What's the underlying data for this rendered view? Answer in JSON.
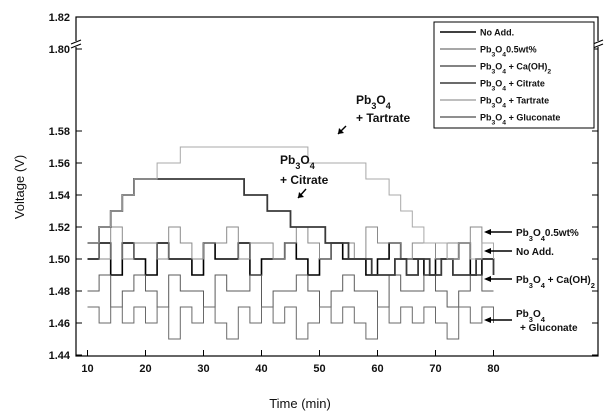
{
  "chart_data": {
    "type": "line",
    "title": "",
    "xlabel": "Time (min)",
    "ylabel": "Voltage (V)",
    "xlim": [
      10,
      100
    ],
    "ylim": [
      1.44,
      1.82
    ],
    "axis_break": {
      "from": 1.58,
      "to": 1.8
    },
    "x_ticks": [
      "10",
      "20",
      "30",
      "40",
      "50",
      "60",
      "70",
      "80"
    ],
    "x_tick_values": [
      10,
      20,
      30,
      40,
      50,
      60,
      70,
      80
    ],
    "y_ticks": [
      "1.44",
      "1.46",
      "1.48",
      "1.50",
      "1.52",
      "1.54",
      "1.56",
      "1.58",
      "1.80",
      "1.82"
    ],
    "y_tick_values": [
      1.44,
      1.46,
      1.48,
      1.5,
      1.52,
      1.54,
      1.56,
      1.58,
      1.8,
      1.82
    ],
    "legend_position": "top-right",
    "legend": [
      {
        "base": "No Add.",
        "sub": "",
        "rest": "",
        "color": "#000000"
      },
      {
        "base": "Pb",
        "sub": "3",
        "mid": "O",
        "sub2": "4",
        "rest": "0.5wt%",
        "color": "#8a8a8a"
      },
      {
        "base": "Pb",
        "sub": "3",
        "mid": "O",
        "sub2": "4",
        "rest": " + Ca(OH)",
        "sub3": "2",
        "color": "#5a5a5a"
      },
      {
        "base": "Pb",
        "sub": "3",
        "mid": "O",
        "sub2": "4",
        "rest": " + Citrate",
        "color": "#3a3a3a"
      },
      {
        "base": "Pb",
        "sub": "3",
        "mid": "O",
        "sub2": "4",
        "rest": " + Tartrate",
        "color": "#a8a8a8"
      },
      {
        "base": "Pb",
        "sub": "3",
        "mid": "O",
        "sub2": "4",
        "rest": " + Gluconate",
        "color": "#6a6a6a"
      }
    ],
    "series": [
      {
        "name": "No Add.",
        "color": "#000000",
        "width": 1.6,
        "x": [
          10,
          12,
          14,
          16,
          18,
          20,
          22,
          24,
          26,
          28,
          30,
          32,
          34,
          36,
          38,
          40,
          42,
          44,
          46,
          48,
          50,
          52,
          54,
          56,
          58,
          60,
          62,
          64,
          66,
          68,
          70,
          72,
          74,
          76,
          78,
          80
        ],
        "y": [
          1.5,
          1.51,
          1.49,
          1.51,
          1.5,
          1.49,
          1.51,
          1.5,
          1.5,
          1.49,
          1.51,
          1.5,
          1.5,
          1.51,
          1.49,
          1.5,
          1.5,
          1.51,
          1.5,
          1.49,
          1.5,
          1.51,
          1.5,
          1.5,
          1.49,
          1.5,
          1.51,
          1.5,
          1.5,
          1.49,
          1.5,
          1.5,
          1.51,
          1.49,
          1.5,
          1.5
        ]
      },
      {
        "name": "Pb3O4 0.5wt%",
        "color": "#8a8a8a",
        "width": 1.0,
        "x": [
          10,
          12,
          14,
          16,
          18,
          20,
          22,
          24,
          26,
          28,
          30,
          32,
          34,
          36,
          38,
          40,
          42,
          44,
          46,
          48,
          50,
          52,
          54,
          56,
          58,
          60,
          62,
          64,
          66,
          68,
          70,
          72,
          74,
          76,
          78,
          80
        ],
        "y": [
          1.51,
          1.5,
          1.52,
          1.5,
          1.51,
          1.51,
          1.5,
          1.52,
          1.51,
          1.5,
          1.51,
          1.51,
          1.52,
          1.5,
          1.51,
          1.51,
          1.5,
          1.51,
          1.52,
          1.51,
          1.5,
          1.51,
          1.51,
          1.5,
          1.52,
          1.51,
          1.51,
          1.5,
          1.51,
          1.51,
          1.5,
          1.51,
          1.51,
          1.52,
          1.5,
          1.51
        ]
      },
      {
        "name": "Pb3O4 + Ca(OH)2",
        "color": "#5a5a5a",
        "width": 1.0,
        "x": [
          10,
          12,
          14,
          16,
          18,
          20,
          22,
          24,
          26,
          28,
          30,
          32,
          34,
          36,
          38,
          40,
          42,
          44,
          46,
          48,
          50,
          52,
          54,
          56,
          58,
          60,
          62,
          64,
          66,
          68,
          70,
          72,
          74,
          76,
          78,
          80
        ],
        "y": [
          1.48,
          1.49,
          1.47,
          1.48,
          1.49,
          1.48,
          1.47,
          1.49,
          1.48,
          1.48,
          1.47,
          1.49,
          1.48,
          1.48,
          1.49,
          1.47,
          1.48,
          1.48,
          1.49,
          1.48,
          1.47,
          1.48,
          1.49,
          1.48,
          1.48,
          1.47,
          1.49,
          1.48,
          1.48,
          1.49,
          1.48,
          1.47,
          1.48,
          1.49,
          1.48,
          1.48
        ]
      },
      {
        "name": "Pb3O4 + Citrate",
        "color": "#3a3a3a",
        "width": 1.8,
        "x": [
          10,
          12,
          14,
          16,
          18,
          19,
          21,
          23,
          25,
          27,
          29,
          31,
          33,
          35,
          37,
          39,
          41,
          43,
          45,
          47,
          49,
          51,
          53,
          55,
          57,
          59,
          61,
          63,
          65,
          67,
          69,
          71,
          73,
          75,
          77,
          80
        ],
        "y": [
          1.51,
          1.52,
          1.53,
          1.54,
          1.55,
          1.55,
          1.55,
          1.55,
          1.55,
          1.55,
          1.55,
          1.55,
          1.55,
          1.55,
          1.54,
          1.54,
          1.53,
          1.53,
          1.52,
          1.52,
          1.52,
          1.51,
          1.51,
          1.5,
          1.5,
          1.49,
          1.49,
          1.5,
          1.49,
          1.5,
          1.49,
          1.5,
          1.49,
          1.49,
          1.5,
          1.49
        ]
      },
      {
        "name": "Pb3O4 + Tartrate",
        "color": "#a8a8a8",
        "width": 1.0,
        "x": [
          10,
          12,
          14,
          16,
          18,
          20,
          22,
          24,
          26,
          28,
          30,
          32,
          34,
          36,
          38,
          40,
          42,
          44,
          46,
          48,
          50,
          52,
          54,
          56,
          58,
          60,
          62,
          64,
          66,
          68,
          70,
          72,
          74,
          76,
          78,
          80
        ],
        "y": [
          1.51,
          1.52,
          1.53,
          1.54,
          1.55,
          1.55,
          1.56,
          1.56,
          1.57,
          1.57,
          1.57,
          1.57,
          1.57,
          1.57,
          1.57,
          1.57,
          1.57,
          1.57,
          1.57,
          1.56,
          1.56,
          1.56,
          1.56,
          1.56,
          1.55,
          1.55,
          1.54,
          1.53,
          1.52,
          1.51,
          1.51,
          1.5,
          1.51,
          1.5,
          1.51,
          1.5
        ]
      },
      {
        "name": "Pb3O4 + Gluconate",
        "color": "#6a6a6a",
        "width": 1.0,
        "x": [
          10,
          12,
          14,
          16,
          18,
          20,
          22,
          24,
          26,
          28,
          30,
          32,
          34,
          36,
          38,
          40,
          42,
          44,
          46,
          48,
          50,
          52,
          54,
          56,
          58,
          60,
          62,
          64,
          66,
          68,
          70,
          72,
          74,
          76,
          78,
          80
        ],
        "y": [
          1.47,
          1.46,
          1.47,
          1.46,
          1.47,
          1.46,
          1.47,
          1.45,
          1.47,
          1.46,
          1.47,
          1.46,
          1.45,
          1.47,
          1.46,
          1.47,
          1.46,
          1.47,
          1.45,
          1.46,
          1.47,
          1.46,
          1.47,
          1.46,
          1.45,
          1.47,
          1.46,
          1.47,
          1.46,
          1.47,
          1.46,
          1.45,
          1.47,
          1.46,
          1.47,
          1.46
        ]
      }
    ],
    "annotations": [
      {
        "id": "tartrate",
        "lines": [
          {
            "base": "Pb",
            "sub": "3",
            "mid": "O",
            "sub2": "4"
          },
          {
            "base": "+ Tartrate"
          }
        ],
        "target_x": 52.5,
        "target_y": 1.557
      },
      {
        "id": "citrate",
        "lines": [
          {
            "base": "Pb",
            "sub": "3",
            "mid": "O",
            "sub2": "4"
          },
          {
            "base": "+ Citrate"
          }
        ],
        "target_x": 49,
        "target_y": 1.521
      }
    ],
    "right_labels": [
      {
        "id": "r1",
        "target_y": 1.5,
        "parts": {
          "base": "Pb",
          "sub": "3",
          "mid": "O",
          "sub2": "4",
          "rest": "0.5wt%"
        }
      },
      {
        "id": "r2",
        "target_y": 1.49,
        "parts": {
          "base": "No Add."
        }
      },
      {
        "id": "r3",
        "target_y": 1.476,
        "parts": {
          "base": "Pb",
          "sub": "3",
          "mid": "O",
          "sub2": "4",
          "rest": " + Ca(OH)",
          "sub3": "2"
        }
      },
      {
        "id": "r4",
        "target_y": 1.463,
        "parts": {
          "base": "Pb",
          "sub": "3",
          "mid": "O",
          "sub2": "4"
        },
        "line2": "+ Gluconate"
      }
    ]
  }
}
